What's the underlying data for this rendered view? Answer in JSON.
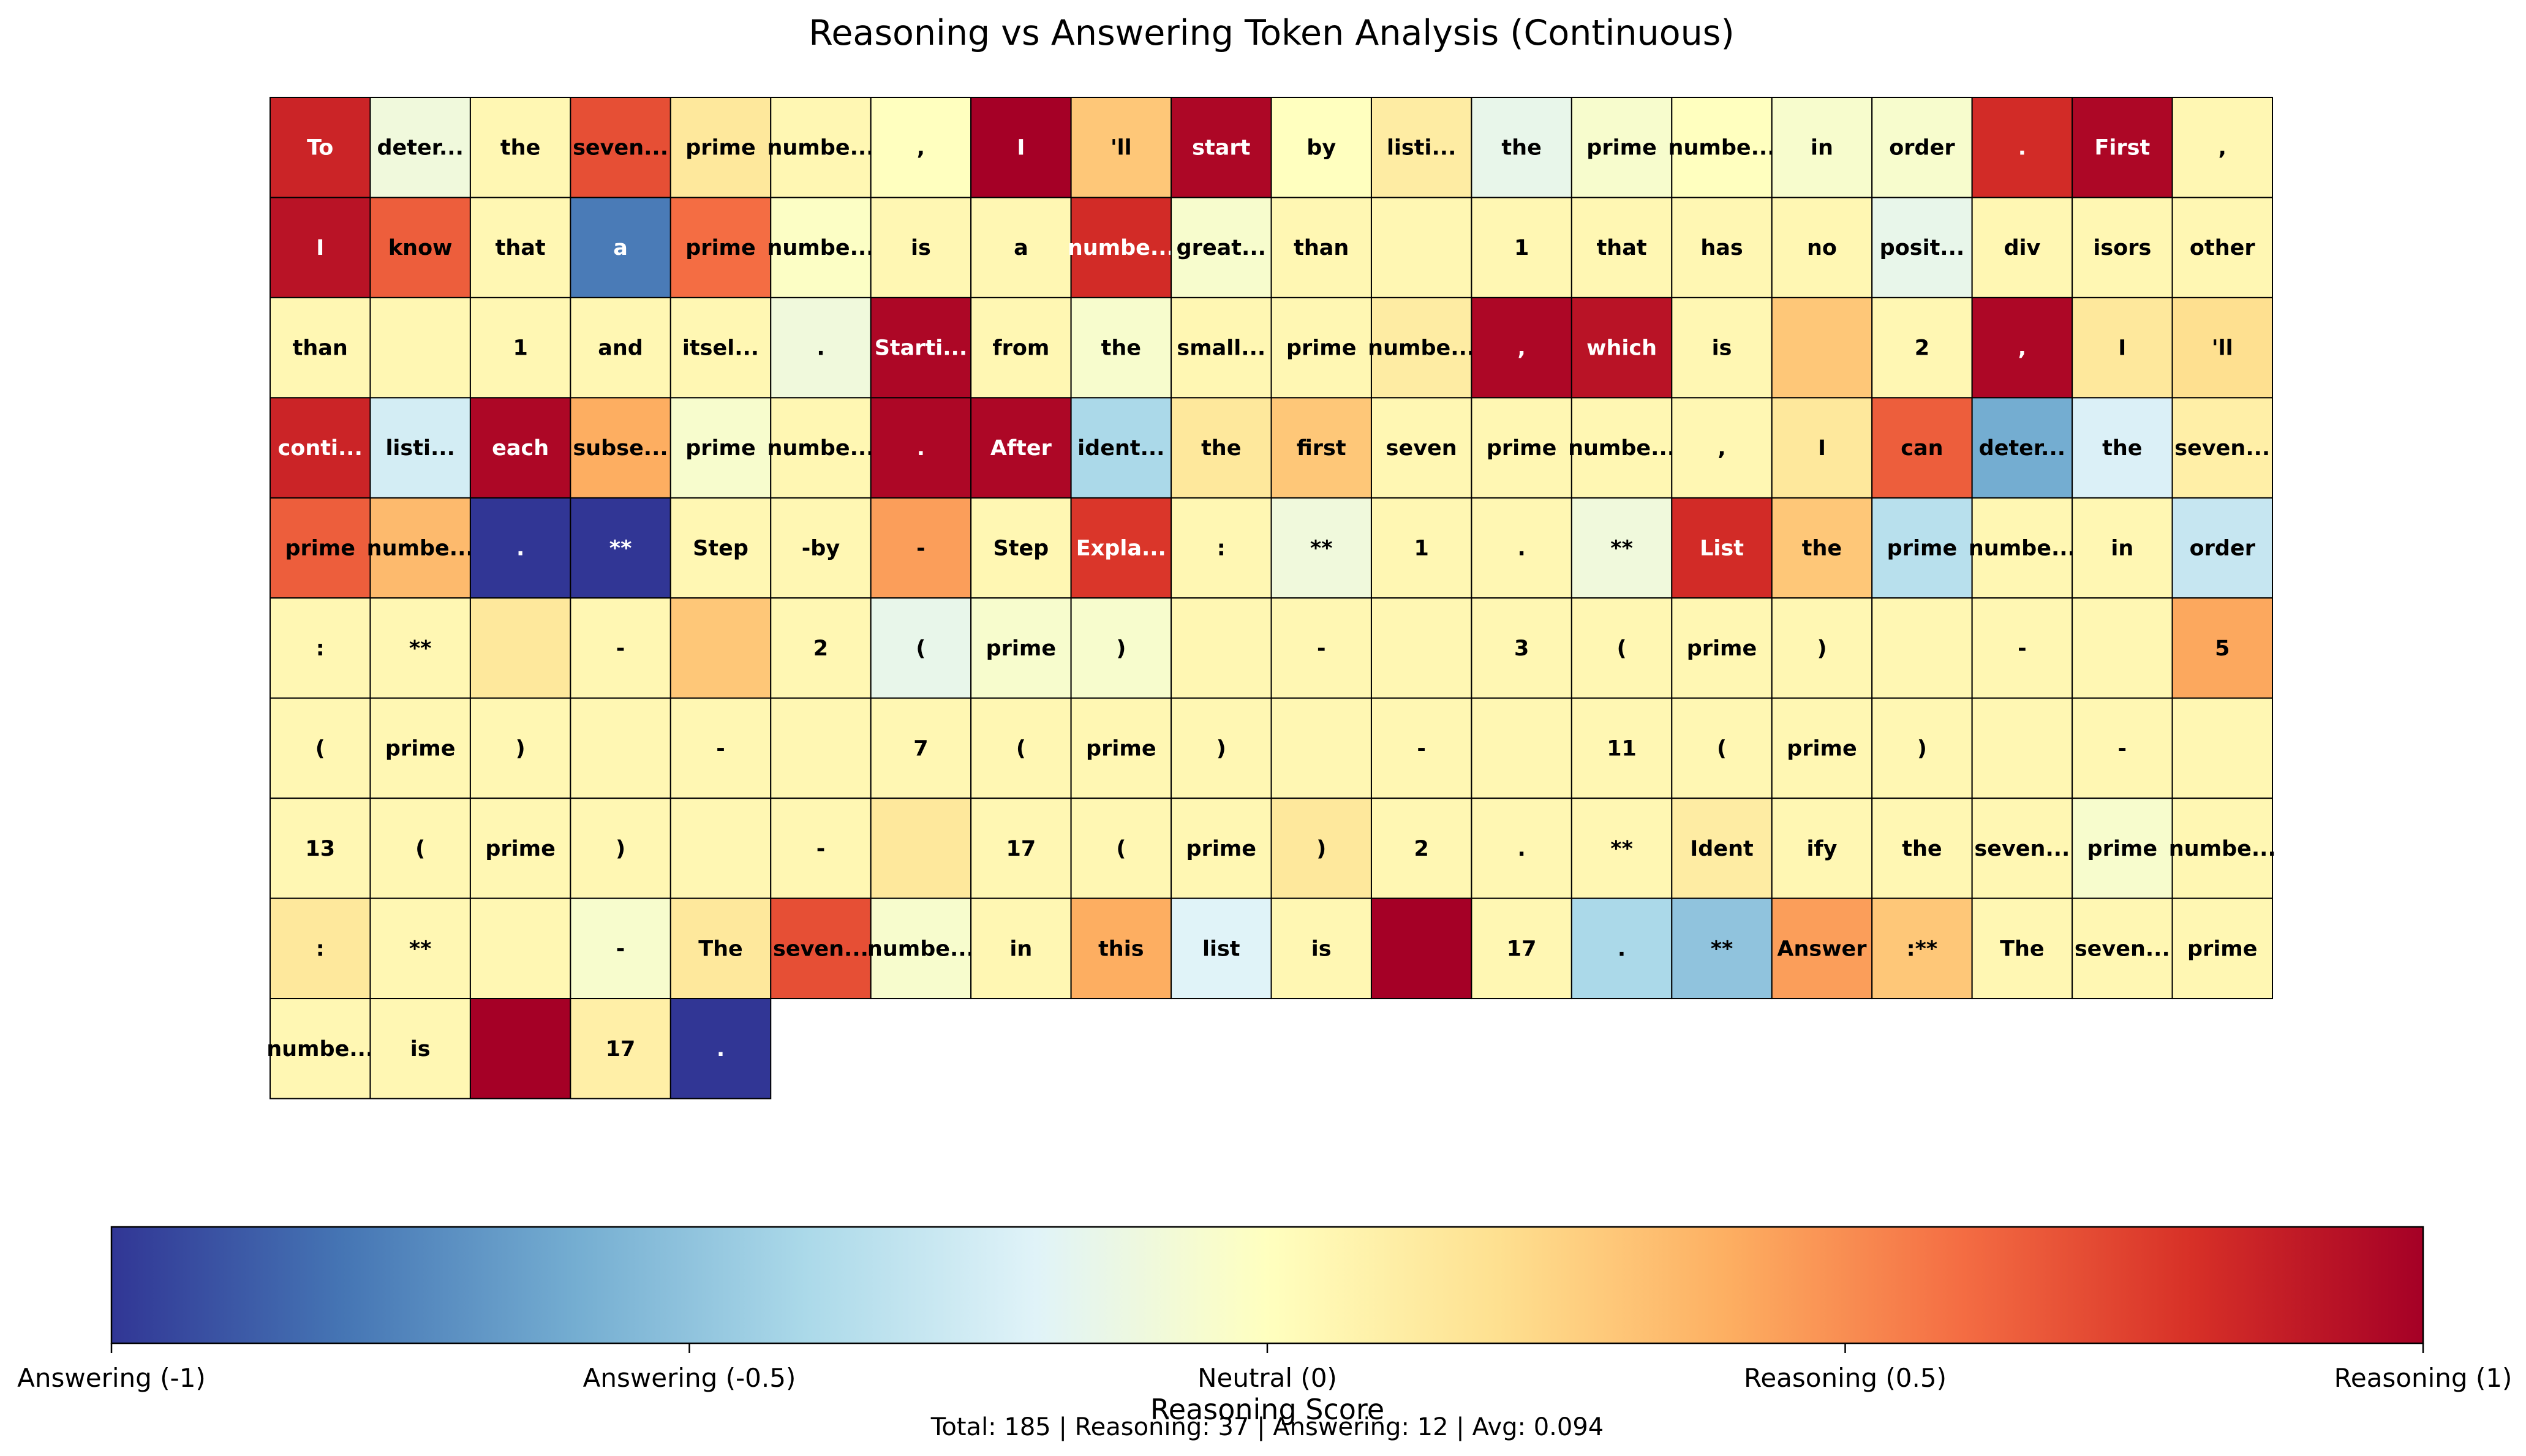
{
  "chart_data": {
    "type": "heatmap",
    "title": "Reasoning vs Answering Token Analysis (Continuous)",
    "columns": 20,
    "score_range": [
      -1,
      1
    ],
    "colormap": "RdYlBu_r",
    "tokens": [
      {
        "t": "To",
        "s": 0.85
      },
      {
        "t": "deter...",
        "s": -0.1
      },
      {
        "t": "the",
        "s": 0.05
      },
      {
        "t": "seven...",
        "s": 0.7
      },
      {
        "t": "prime",
        "s": 0.15
      },
      {
        "t": "numbe...",
        "s": 0.05
      },
      {
        "t": ",",
        "s": 0.0
      },
      {
        "t": "I",
        "s": 1.0
      },
      {
        "t": "'ll",
        "s": 0.3
      },
      {
        "t": "start",
        "s": 0.97
      },
      {
        "t": "by",
        "s": 0.0
      },
      {
        "t": "listi...",
        "s": 0.12
      },
      {
        "t": "the",
        "s": -0.15
      },
      {
        "t": "prime",
        "s": -0.05
      },
      {
        "t": "numbe...",
        "s": 0.0
      },
      {
        "t": "in",
        "s": -0.05
      },
      {
        "t": "order",
        "s": -0.05
      },
      {
        "t": ".",
        "s": 0.82
      },
      {
        "t": "First",
        "s": 0.97
      },
      {
        "t": ",",
        "s": 0.05
      },
      {
        "t": "I",
        "s": 0.92
      },
      {
        "t": "know",
        "s": 0.65
      },
      {
        "t": "that",
        "s": 0.05
      },
      {
        "t": "a",
        "s": -0.78
      },
      {
        "t": "prime",
        "s": 0.6
      },
      {
        "t": "numbe...",
        "s": -0.02
      },
      {
        "t": "is",
        "s": 0.05
      },
      {
        "t": "a",
        "s": 0.05
      },
      {
        "t": "numbe...",
        "s": 0.82
      },
      {
        "t": "great...",
        "s": -0.05
      },
      {
        "t": "than",
        "s": 0.05
      },
      {
        "t": "",
        "s": 0.05
      },
      {
        "t": "1",
        "s": 0.05
      },
      {
        "t": "that",
        "s": 0.05
      },
      {
        "t": "has",
        "s": 0.05
      },
      {
        "t": "no",
        "s": 0.05
      },
      {
        "t": "posit...",
        "s": -0.15
      },
      {
        "t": "div",
        "s": 0.05
      },
      {
        "t": "isors",
        "s": 0.05
      },
      {
        "t": "other",
        "s": 0.05
      },
      {
        "t": "than",
        "s": 0.05
      },
      {
        "t": "",
        "s": 0.05
      },
      {
        "t": "1",
        "s": 0.05
      },
      {
        "t": "and",
        "s": 0.05
      },
      {
        "t": "itsel...",
        "s": 0.05
      },
      {
        "t": ".",
        "s": -0.1
      },
      {
        "t": "Starti...",
        "s": 0.97
      },
      {
        "t": "from",
        "s": 0.05
      },
      {
        "t": "the",
        "s": -0.05
      },
      {
        "t": "small...",
        "s": 0.05
      },
      {
        "t": "prime",
        "s": 0.05
      },
      {
        "t": "numbe...",
        "s": 0.12
      },
      {
        "t": ",",
        "s": 0.97
      },
      {
        "t": "which",
        "s": 0.92
      },
      {
        "t": "is",
        "s": 0.05
      },
      {
        "t": "",
        "s": 0.3
      },
      {
        "t": "2",
        "s": 0.05
      },
      {
        "t": ",",
        "s": 0.97
      },
      {
        "t": "I",
        "s": 0.15
      },
      {
        "t": "'ll",
        "s": 0.2
      },
      {
        "t": "conti...",
        "s": 0.85
      },
      {
        "t": "listi...",
        "s": -0.25
      },
      {
        "t": "each",
        "s": 0.97
      },
      {
        "t": "subse...",
        "s": 0.4
      },
      {
        "t": "prime",
        "s": -0.05
      },
      {
        "t": "numbe...",
        "s": 0.05
      },
      {
        "t": ".",
        "s": 0.97
      },
      {
        "t": "After",
        "s": 0.97
      },
      {
        "t": "ident...",
        "s": -0.4
      },
      {
        "t": "the",
        "s": 0.15
      },
      {
        "t": "first",
        "s": 0.3
      },
      {
        "t": "seven",
        "s": 0.05
      },
      {
        "t": "prime",
        "s": 0.05
      },
      {
        "t": "numbe...",
        "s": 0.05
      },
      {
        "t": ",",
        "s": 0.05
      },
      {
        "t": "I",
        "s": 0.15
      },
      {
        "t": "can",
        "s": 0.65
      },
      {
        "t": "deter...",
        "s": -0.6
      },
      {
        "t": "the",
        "s": -0.22
      },
      {
        "t": "seven...",
        "s": 0.1
      },
      {
        "t": "prime",
        "s": 0.65
      },
      {
        "t": "numbe...",
        "s": 0.35
      },
      {
        "t": ".",
        "s": -1.0
      },
      {
        "t": "**",
        "s": -1.0
      },
      {
        "t": "Step",
        "s": 0.05
      },
      {
        "t": "-by",
        "s": 0.05
      },
      {
        "t": "-",
        "s": 0.45
      },
      {
        "t": "Step",
        "s": 0.05
      },
      {
        "t": "Expla...",
        "s": 0.78
      },
      {
        "t": ":",
        "s": 0.05
      },
      {
        "t": "**",
        "s": -0.1
      },
      {
        "t": "1",
        "s": 0.05
      },
      {
        "t": ".",
        "s": 0.05
      },
      {
        "t": "**",
        "s": -0.1
      },
      {
        "t": "List",
        "s": 0.82
      },
      {
        "t": "the",
        "s": 0.3
      },
      {
        "t": "prime",
        "s": -0.35
      },
      {
        "t": "numbe...",
        "s": 0.05
      },
      {
        "t": "in",
        "s": 0.05
      },
      {
        "t": "order",
        "s": -0.3
      },
      {
        "t": ":",
        "s": 0.05
      },
      {
        "t": "**",
        "s": 0.05
      },
      {
        "t": "",
        "s": 0.15
      },
      {
        "t": "-",
        "s": 0.05
      },
      {
        "t": "",
        "s": 0.3
      },
      {
        "t": "2",
        "s": 0.05
      },
      {
        "t": "(",
        "s": -0.15
      },
      {
        "t": "prime",
        "s": -0.05
      },
      {
        "t": ")",
        "s": -0.05
      },
      {
        "t": "",
        "s": 0.05
      },
      {
        "t": "-",
        "s": 0.05
      },
      {
        "t": "",
        "s": 0.05
      },
      {
        "t": "3",
        "s": 0.05
      },
      {
        "t": "(",
        "s": 0.05
      },
      {
        "t": "prime",
        "s": 0.05
      },
      {
        "t": ")",
        "s": 0.05
      },
      {
        "t": "",
        "s": 0.05
      },
      {
        "t": "-",
        "s": 0.05
      },
      {
        "t": "",
        "s": 0.05
      },
      {
        "t": "5",
        "s": 0.42
      },
      {
        "t": "(",
        "s": 0.05
      },
      {
        "t": "prime",
        "s": 0.05
      },
      {
        "t": ")",
        "s": 0.05
      },
      {
        "t": "",
        "s": 0.05
      },
      {
        "t": "-",
        "s": 0.05
      },
      {
        "t": "",
        "s": 0.05
      },
      {
        "t": "7",
        "s": 0.05
      },
      {
        "t": "(",
        "s": 0.05
      },
      {
        "t": "prime",
        "s": 0.05
      },
      {
        "t": ")",
        "s": 0.05
      },
      {
        "t": "",
        "s": 0.05
      },
      {
        "t": "-",
        "s": 0.05
      },
      {
        "t": "",
        "s": 0.05
      },
      {
        "t": "11",
        "s": 0.05
      },
      {
        "t": "(",
        "s": 0.05
      },
      {
        "t": "prime",
        "s": 0.05
      },
      {
        "t": ")",
        "s": 0.05
      },
      {
        "t": "",
        "s": 0.05
      },
      {
        "t": "-",
        "s": 0.05
      },
      {
        "t": "",
        "s": 0.05
      },
      {
        "t": "13",
        "s": 0.05
      },
      {
        "t": "(",
        "s": 0.05
      },
      {
        "t": "prime",
        "s": 0.05
      },
      {
        "t": ")",
        "s": 0.05
      },
      {
        "t": "",
        "s": 0.05
      },
      {
        "t": "-",
        "s": 0.05
      },
      {
        "t": "",
        "s": 0.15
      },
      {
        "t": "17",
        "s": 0.05
      },
      {
        "t": "(",
        "s": 0.05
      },
      {
        "t": "prime",
        "s": 0.05
      },
      {
        "t": ")",
        "s": 0.15
      },
      {
        "t": "2",
        "s": 0.05
      },
      {
        "t": ".",
        "s": 0.05
      },
      {
        "t": "**",
        "s": 0.05
      },
      {
        "t": "Ident",
        "s": 0.12
      },
      {
        "t": "ify",
        "s": 0.05
      },
      {
        "t": "the",
        "s": 0.05
      },
      {
        "t": "seven...",
        "s": 0.05
      },
      {
        "t": "prime",
        "s": -0.05
      },
      {
        "t": "numbe...",
        "s": 0.05
      },
      {
        "t": ":",
        "s": 0.15
      },
      {
        "t": "**",
        "s": 0.05
      },
      {
        "t": "",
        "s": 0.05
      },
      {
        "t": "-",
        "s": -0.05
      },
      {
        "t": "The",
        "s": 0.15
      },
      {
        "t": "seven...",
        "s": 0.7
      },
      {
        "t": "numbe...",
        "s": -0.05
      },
      {
        "t": "in",
        "s": 0.05
      },
      {
        "t": "this",
        "s": 0.4
      },
      {
        "t": "list",
        "s": -0.2
      },
      {
        "t": "is",
        "s": 0.05
      },
      {
        "t": "",
        "s": 1.0
      },
      {
        "t": "17",
        "s": 0.05
      },
      {
        "t": ".",
        "s": -0.4
      },
      {
        "t": "**",
        "s": -0.5
      },
      {
        "t": "Answer",
        "s": 0.45
      },
      {
        "t": ":**",
        "s": 0.3
      },
      {
        "t": "The",
        "s": 0.05
      },
      {
        "t": "seven...",
        "s": 0.05
      },
      {
        "t": "prime",
        "s": 0.05
      },
      {
        "t": "numbe...",
        "s": 0.05
      },
      {
        "t": "is",
        "s": 0.05
      },
      {
        "t": "",
        "s": 1.0
      },
      {
        "t": "17",
        "s": 0.1
      },
      {
        "t": ".",
        "s": -1.0
      }
    ],
    "colorbar": {
      "label": "Reasoning Score",
      "ticks": [
        {
          "value": -1,
          "label": "Answering (-1)"
        },
        {
          "value": -0.5,
          "label": "Answering (-0.5)"
        },
        {
          "value": 0,
          "label": "Neutral (0)"
        },
        {
          "value": 0.5,
          "label": "Reasoning (0.5)"
        },
        {
          "value": 1,
          "label": "Reasoning (1)"
        }
      ]
    },
    "summary": "Total: 185 | Reasoning: 37 | Answering: 12 | Avg: 0.094"
  }
}
